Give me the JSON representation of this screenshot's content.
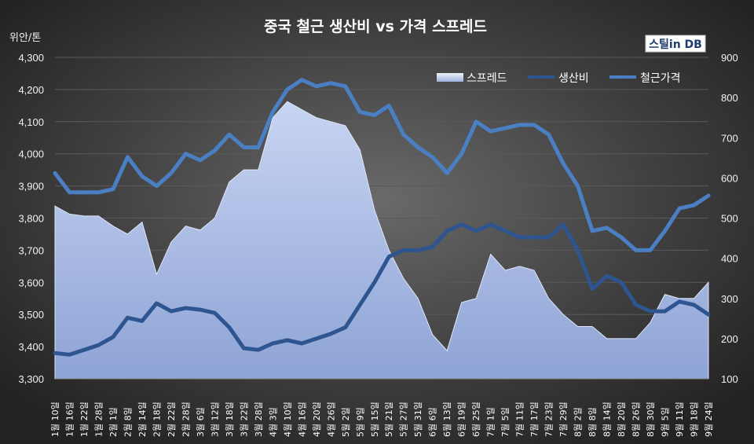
{
  "chart_data": {
    "type": "area",
    "title": "중국 철근 생산비 vs 가격 스프레드",
    "y_left_unit": "위안/톤",
    "logo": "스틸in DB",
    "y_left_range": [
      3300,
      4300
    ],
    "y_left_ticks": [
      "3,300",
      "3,400",
      "3,500",
      "3,600",
      "3,700",
      "3,800",
      "3,900",
      "4,000",
      "4,100",
      "4,200",
      "4,300"
    ],
    "y_right_range": [
      100,
      900
    ],
    "y_right_ticks": [
      "100",
      "200",
      "300",
      "400",
      "500",
      "600",
      "700",
      "800",
      "900"
    ],
    "x": [
      "1월 10일",
      "1월 16일",
      "1월 22일",
      "1월 28일",
      "2월 1일",
      "2월 8일",
      "2월 14일",
      "2월 18일",
      "2월 22일",
      "2월 28일",
      "3월 6일",
      "3월 12일",
      "3월 18일",
      "3월 22일",
      "3월 28일",
      "4월 3일",
      "4월 10일",
      "4월 16일",
      "4월 20일",
      "4월 26일",
      "5월 2일",
      "5월 9일",
      "5월 15일",
      "5월 21일",
      "5월 27일",
      "5월 31일",
      "6월 6일",
      "6월 13일",
      "6월 19일",
      "6월 25일",
      "7월 1일",
      "7월 5일",
      "7월 11일",
      "7월 17일",
      "7월 23일",
      "7월 29일",
      "8월 2일",
      "8월 8일",
      "8월 14일",
      "8월 20일",
      "8월 26일",
      "8월 30일",
      "9월 5일",
      "9월 11일",
      "9월 18일",
      "9월 24일"
    ],
    "legend": [
      "스프레드",
      "생산비",
      "철근가격"
    ],
    "legend_position": "top-right",
    "series": [
      {
        "name": "스프레드",
        "axis": "right",
        "color": "#a9bde6",
        "values": [
          530,
          510,
          505,
          505,
          480,
          460,
          490,
          360,
          440,
          480,
          470,
          500,
          590,
          620,
          620,
          750,
          790,
          770,
          750,
          740,
          730,
          670,
          520,
          420,
          350,
          300,
          210,
          170,
          290,
          300,
          410,
          370,
          380,
          370,
          300,
          260,
          230,
          230,
          200,
          200,
          200,
          240,
          310,
          300,
          300,
          340
        ]
      },
      {
        "name": "생산비",
        "axis": "left",
        "color": "#2e5590",
        "values": [
          3380,
          3375,
          3390,
          3405,
          3430,
          3490,
          3480,
          3535,
          3510,
          3520,
          3515,
          3505,
          3460,
          3395,
          3390,
          3410,
          3420,
          3410,
          3425,
          3440,
          3460,
          3530,
          3600,
          3680,
          3700,
          3700,
          3710,
          3760,
          3780,
          3760,
          3780,
          3760,
          3740,
          3740,
          3740,
          3780,
          3700,
          3580,
          3620,
          3600,
          3530,
          3510,
          3510,
          3540,
          3530,
          3500
        ]
      },
      {
        "name": "철근가격",
        "axis": "left",
        "color": "#4a7fc3",
        "values": [
          3940,
          3880,
          3880,
          3880,
          3890,
          3990,
          3930,
          3900,
          3940,
          4000,
          3980,
          4010,
          4060,
          4020,
          4020,
          4130,
          4200,
          4230,
          4210,
          4220,
          4210,
          4130,
          4120,
          4150,
          4060,
          4020,
          3990,
          3940,
          4000,
          4100,
          4070,
          4080,
          4090,
          4090,
          4060,
          3970,
          3900,
          3760,
          3770,
          3740,
          3700,
          3700,
          3760,
          3830,
          3840,
          3870
        ]
      }
    ]
  }
}
